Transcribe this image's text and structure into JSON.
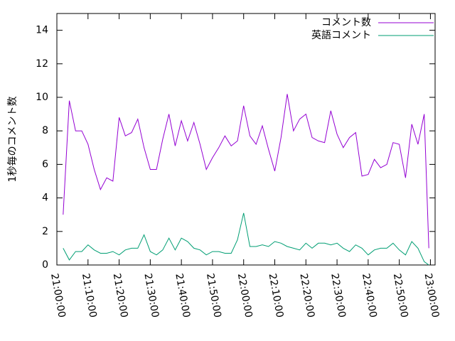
{
  "chart_data": {
    "type": "line",
    "y_label": "1秒毎のコメント数",
    "x": [
      "21:02:00",
      "21:04:00",
      "21:06:00",
      "21:08:00",
      "21:10:00",
      "21:12:00",
      "21:14:00",
      "21:16:00",
      "21:18:00",
      "21:20:00",
      "21:22:00",
      "21:24:00",
      "21:26:00",
      "21:28:00",
      "21:30:00",
      "21:32:00",
      "21:34:00",
      "21:36:00",
      "21:38:00",
      "21:40:00",
      "21:42:00",
      "21:44:00",
      "21:46:00",
      "21:48:00",
      "21:50:00",
      "21:52:00",
      "21:54:00",
      "21:56:00",
      "21:58:00",
      "22:00:00",
      "22:02:00",
      "22:04:00",
      "22:06:00",
      "22:08:00",
      "22:10:00",
      "22:12:00",
      "22:14:00",
      "22:16:00",
      "22:18:00",
      "22:20:00",
      "22:22:00",
      "22:24:00",
      "22:26:00",
      "22:28:00",
      "22:30:00",
      "22:32:00",
      "22:34:00",
      "22:36:00",
      "22:38:00",
      "22:40:00",
      "22:42:00",
      "22:44:00",
      "22:46:00",
      "22:48:00",
      "22:50:00",
      "22:52:00",
      "22:54:00",
      "22:56:00",
      "22:58:00",
      "22:59:30"
    ],
    "series": [
      {
        "name": "コメント数",
        "color": "#9400d3",
        "values": [
          3.0,
          9.8,
          8.0,
          8.0,
          7.2,
          5.7,
          4.5,
          5.2,
          5.0,
          8.8,
          7.7,
          7.9,
          8.7,
          7.0,
          5.7,
          5.7,
          7.5,
          9.0,
          7.1,
          8.6,
          7.4,
          8.5,
          7.2,
          5.7,
          6.4,
          7.0,
          7.7,
          7.1,
          7.4,
          9.5,
          7.7,
          7.2,
          8.3,
          6.9,
          5.6,
          7.6,
          10.2,
          8.0,
          8.7,
          9.0,
          7.6,
          7.4,
          7.3,
          9.2,
          7.8,
          7.0,
          7.6,
          7.9,
          5.3,
          5.4,
          6.3,
          5.8,
          6.0,
          7.3,
          7.2,
          5.2,
          8.4,
          7.2,
          9.0,
          1.0
        ]
      },
      {
        "name": "英語コメント",
        "color": "#009e73",
        "values": [
          1.0,
          0.3,
          0.8,
          0.8,
          1.2,
          0.9,
          0.7,
          0.7,
          0.8,
          0.6,
          0.9,
          1.0,
          1.0,
          1.8,
          0.8,
          0.6,
          0.9,
          1.6,
          0.9,
          1.6,
          1.4,
          1.0,
          0.9,
          0.6,
          0.8,
          0.8,
          0.7,
          0.7,
          1.5,
          3.1,
          1.1,
          1.1,
          1.2,
          1.1,
          1.4,
          1.3,
          1.1,
          1.0,
          0.9,
          1.3,
          1.0,
          1.3,
          1.3,
          1.2,
          1.3,
          1.0,
          0.8,
          1.2,
          1.0,
          0.6,
          0.9,
          1.0,
          1.0,
          1.3,
          0.9,
          0.6,
          1.4,
          1.0,
          0.2,
          0.0
        ]
      }
    ],
    "xlim": [
      "21:00:00",
      "23:01:30"
    ],
    "xticks": [
      "21:00:00",
      "21:10:00",
      "21:20:00",
      "21:30:00",
      "21:40:00",
      "21:50:00",
      "22:00:00",
      "22:10:00",
      "22:20:00",
      "22:30:00",
      "22:40:00",
      "22:50:00",
      "23:00:00"
    ],
    "ylim": [
      0,
      15
    ],
    "yticks": [
      0,
      2,
      4,
      6,
      8,
      10,
      12,
      14
    ],
    "legend": "top-right"
  }
}
